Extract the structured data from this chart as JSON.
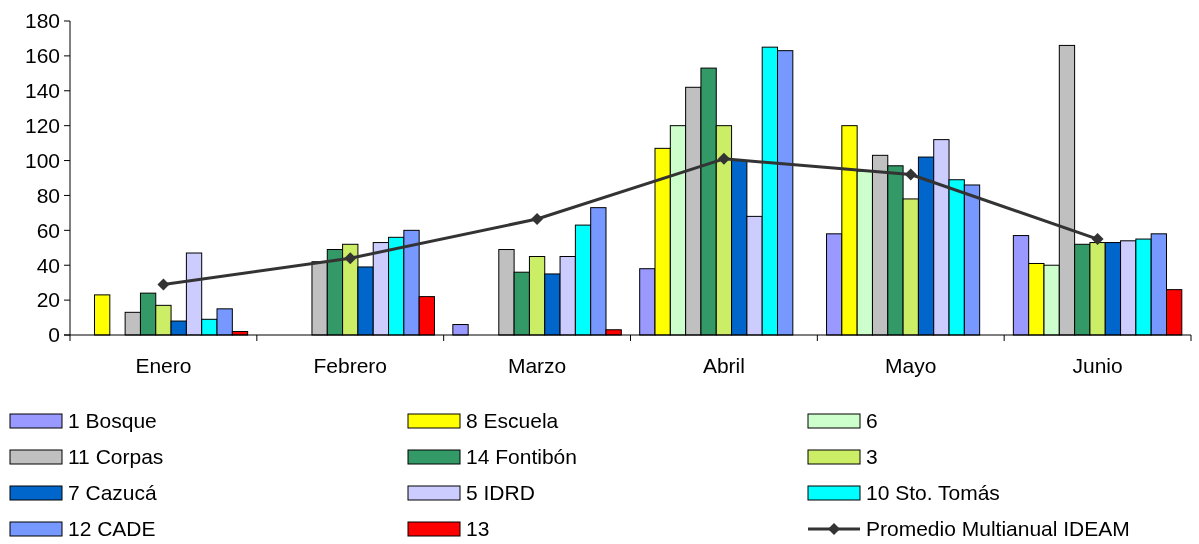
{
  "chart_data": {
    "type": "bar",
    "categories": [
      "Enero",
      "Febrero",
      "Marzo",
      "Abril",
      "Mayo",
      "Junio"
    ],
    "ylim": [
      0,
      180
    ],
    "yticks": [
      0,
      20,
      40,
      60,
      80,
      100,
      120,
      140,
      160,
      180
    ],
    "grid": false,
    "legend": "bottom",
    "series": [
      {
        "name": "1 Bosque",
        "color": "#9999ff",
        "values": [
          null,
          null,
          6,
          38,
          58,
          57
        ]
      },
      {
        "name": "8 Escuela",
        "color": "#ffff00",
        "values": [
          23,
          null,
          null,
          107,
          120,
          41
        ]
      },
      {
        "name": "6",
        "color": "#ccffcc",
        "values": [
          null,
          null,
          null,
          120,
          94,
          40
        ]
      },
      {
        "name": "11 Corpas",
        "color": "#c0c0c0",
        "values": [
          13,
          42,
          49,
          142,
          103,
          166
        ]
      },
      {
        "name": "14 Fontibón",
        "color": "#339966",
        "values": [
          24,
          49,
          36,
          153,
          97,
          52
        ]
      },
      {
        "name": "3",
        "color": "#ccee66",
        "values": [
          17,
          52,
          45,
          120,
          78,
          53
        ]
      },
      {
        "name": "7 Cazucá",
        "color": "#0066cc",
        "values": [
          8,
          39,
          35,
          100,
          102,
          53
        ]
      },
      {
        "name": "5 IDRD",
        "color": "#ccccff",
        "values": [
          47,
          53,
          45,
          68,
          112,
          54
        ]
      },
      {
        "name": "10 Sto. Tomás",
        "color": "#00ffff",
        "values": [
          9,
          56,
          63,
          165,
          89,
          55
        ]
      },
      {
        "name": "12 CADE",
        "color": "#7799ff",
        "values": [
          15,
          60,
          73,
          163,
          86,
          58
        ]
      },
      {
        "name": "13",
        "color": "#ff0000",
        "values": [
          2,
          22,
          3,
          null,
          null,
          26
        ]
      },
      {
        "name": "Promedio Multianual IDEAM",
        "type": "line",
        "color": "#333333",
        "marker": "diamond",
        "values": [
          29,
          44,
          66.5,
          101,
          92,
          55
        ]
      }
    ]
  }
}
